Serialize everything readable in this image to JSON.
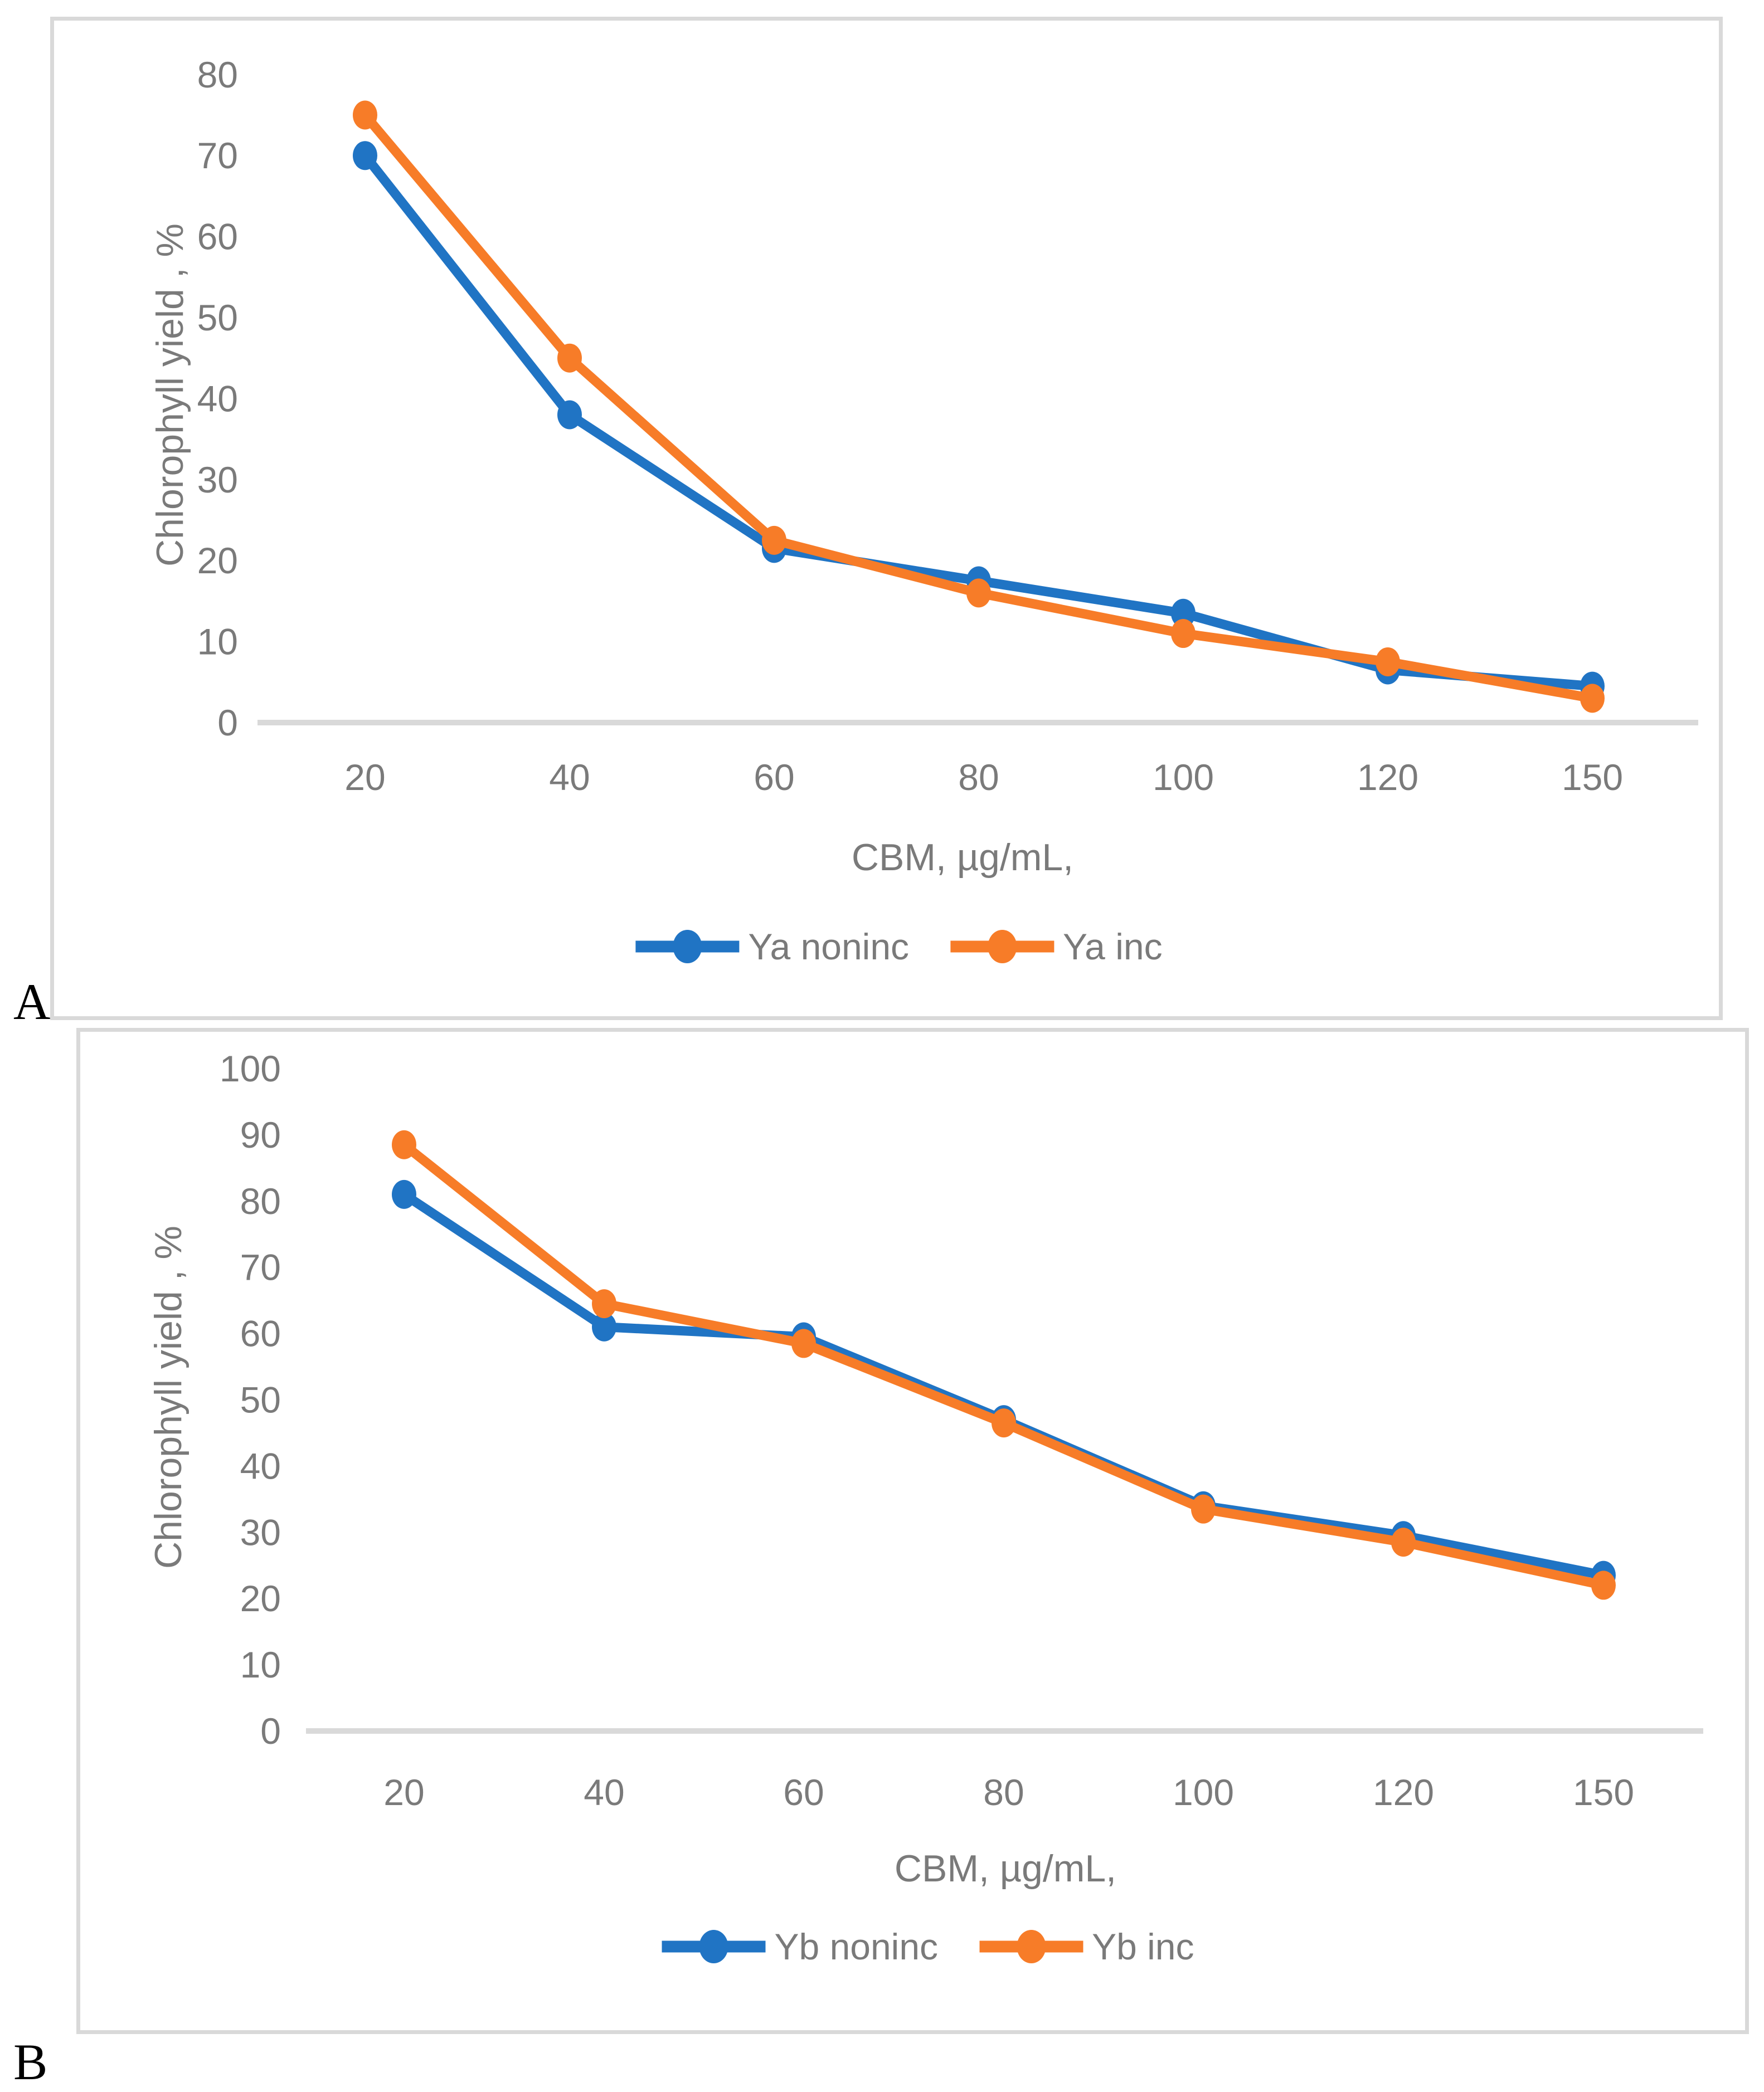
{
  "figure_labels": {
    "panel_a": "A",
    "panel_b": "B"
  },
  "colors": {
    "series_noninc": "#2074C4",
    "series_inc": "#F77C28",
    "axis_text": "#7A7A7A",
    "axis_line": "#D9D9D9",
    "panel_border": "#D9D9D9"
  },
  "chart_data": [
    {
      "id": "chart-a",
      "type": "line",
      "title": "",
      "categories": [
        "20",
        "40",
        "60",
        "80",
        "100",
        "120",
        "150"
      ],
      "series": [
        {
          "name": "Ya noninc",
          "color_key": "series_noninc",
          "values": [
            70,
            38,
            21.5,
            17.5,
            13.5,
            6.5,
            4.5
          ]
        },
        {
          "name": "Ya inc",
          "color_key": "series_inc",
          "values": [
            75,
            45,
            22.5,
            16,
            11,
            7.5,
            3
          ]
        }
      ],
      "xlabel": "CBM, µg/mL,",
      "ylabel": "Chlorophyll yield , %",
      "ylim": [
        0,
        80
      ],
      "ytick_step": 10,
      "grid": "off",
      "legend_position": "bottom"
    },
    {
      "id": "chart-b",
      "type": "line",
      "title": "",
      "categories": [
        "20",
        "40",
        "60",
        "80",
        "100",
        "120",
        "150"
      ],
      "series": [
        {
          "name": "Yb noninc",
          "color_key": "series_noninc",
          "values": [
            81,
            61,
            59.5,
            47,
            34,
            29.5,
            23.5
          ]
        },
        {
          "name": "Yb inc",
          "color_key": "series_inc",
          "values": [
            88.5,
            64.5,
            58.5,
            46.5,
            33.5,
            28.5,
            22
          ]
        }
      ],
      "xlabel": "CBM, µg/mL,",
      "ylabel": "Chlorophyll yield , %",
      "ylim": [
        0,
        100
      ],
      "ytick_step": 10,
      "grid": "off",
      "legend_position": "bottom"
    }
  ]
}
